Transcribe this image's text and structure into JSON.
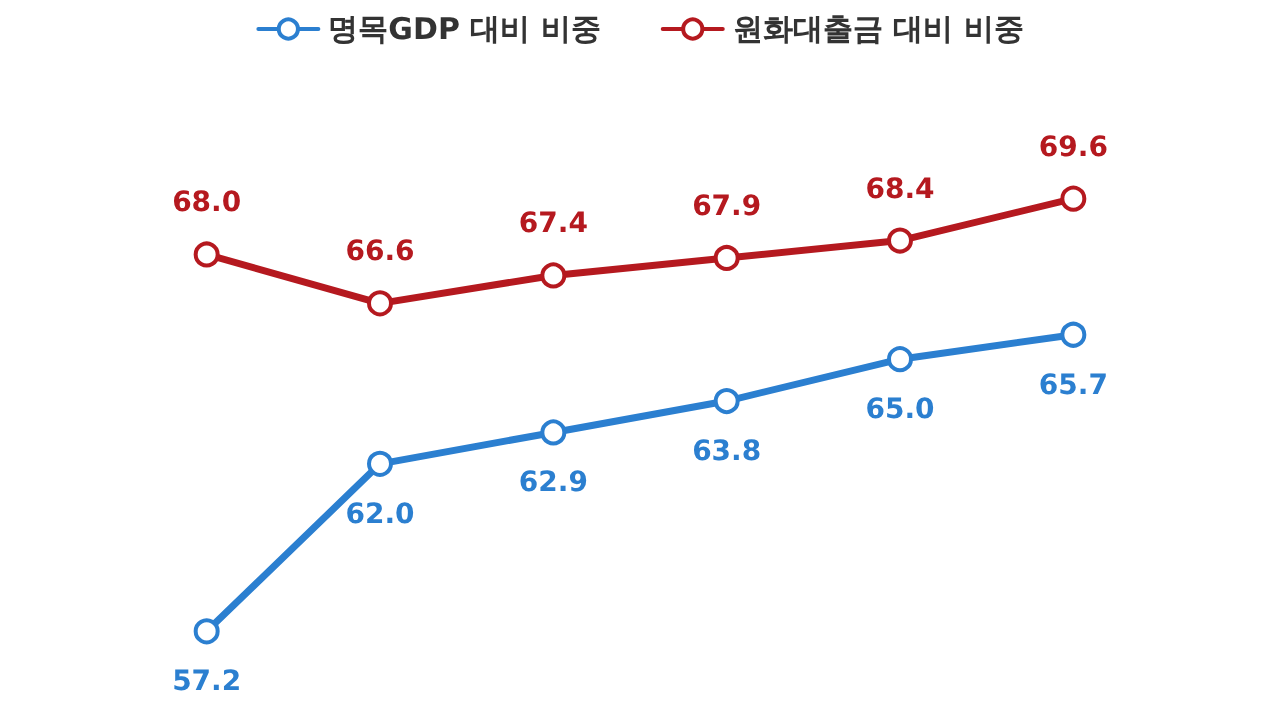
{
  "chart_data": {
    "type": "line",
    "categories": [
      null,
      null,
      null,
      null,
      null,
      null
    ],
    "series": [
      {
        "name": "명목GDP 대비 비중",
        "color": "#2b7fd0",
        "values": [
          57.2,
          62.0,
          62.9,
          63.8,
          65.0,
          65.7
        ],
        "value_labels": [
          "57.2",
          "62.0",
          "62.9",
          "63.8",
          "65.0",
          "65.7"
        ]
      },
      {
        "name": "원화대출금 대비 비중",
        "color": "#b5191f",
        "values": [
          68.0,
          66.6,
          67.4,
          67.9,
          68.4,
          69.6
        ],
        "value_labels": [
          "68.0",
          "66.6",
          "67.4",
          "67.9",
          "68.4",
          "69.6"
        ]
      }
    ],
    "legend": "top",
    "marker": "circle",
    "line_style": "solid",
    "grid": false
  }
}
